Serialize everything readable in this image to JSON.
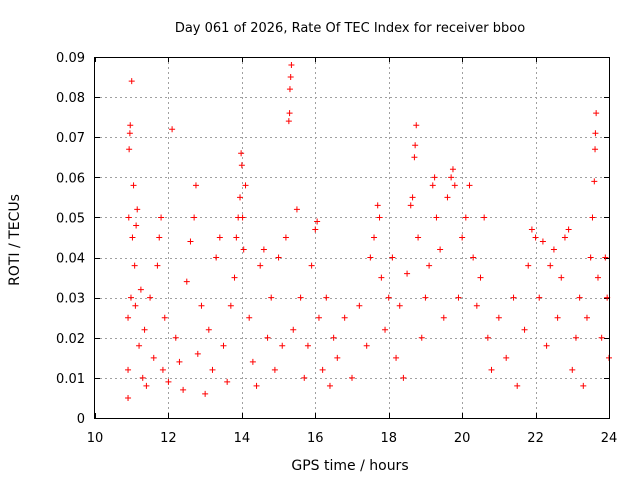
{
  "chart_data": {
    "type": "scatter",
    "title": "Day 061 of 2026, Rate Of TEC Index for receiver bboo",
    "xlabel": "GPS time / hours",
    "ylabel": "ROTI / TECUs",
    "xlim": [
      10,
      24
    ],
    "ylim": [
      0,
      0.09
    ],
    "x_ticks": [
      10,
      12,
      14,
      16,
      18,
      20,
      22,
      24
    ],
    "x_tick_labels": [
      "10",
      "12",
      "14",
      "16",
      "18",
      "20",
      "22",
      "24"
    ],
    "y_ticks": [
      0,
      0.01,
      0.02,
      0.03,
      0.04,
      0.05,
      0.06,
      0.07,
      0.08,
      0.09
    ],
    "y_tick_labels": [
      "0",
      "0.01",
      "0.02",
      "0.03",
      "0.04",
      "0.05",
      "0.06",
      "0.07",
      "0.08",
      "0.09"
    ],
    "grid": true,
    "marker": "+",
    "marker_color": "#ff0000",
    "series": [
      {
        "name": "ROTI",
        "points": [
          [
            10.9,
            0.005
          ],
          [
            10.9,
            0.012
          ],
          [
            10.9,
            0.025
          ],
          [
            10.92,
            0.05
          ],
          [
            10.93,
            0.067
          ],
          [
            10.95,
            0.071
          ],
          [
            10.96,
            0.073
          ],
          [
            10.98,
            0.03
          ],
          [
            11.0,
            0.084
          ],
          [
            11.02,
            0.045
          ],
          [
            11.05,
            0.058
          ],
          [
            11.08,
            0.038
          ],
          [
            11.1,
            0.028
          ],
          [
            11.12,
            0.048
          ],
          [
            11.15,
            0.052
          ],
          [
            11.2,
            0.018
          ],
          [
            11.25,
            0.032
          ],
          [
            11.3,
            0.01
          ],
          [
            11.35,
            0.022
          ],
          [
            11.4,
            0.008
          ],
          [
            11.5,
            0.03
          ],
          [
            11.6,
            0.015
          ],
          [
            11.7,
            0.038
          ],
          [
            11.75,
            0.045
          ],
          [
            11.8,
            0.05
          ],
          [
            11.85,
            0.012
          ],
          [
            11.9,
            0.025
          ],
          [
            12.0,
            0.009
          ],
          [
            12.1,
            0.072
          ],
          [
            12.2,
            0.02
          ],
          [
            12.3,
            0.014
          ],
          [
            12.4,
            0.007
          ],
          [
            12.5,
            0.034
          ],
          [
            12.6,
            0.044
          ],
          [
            12.7,
            0.05
          ],
          [
            12.75,
            0.058
          ],
          [
            12.8,
            0.016
          ],
          [
            12.9,
            0.028
          ],
          [
            13.0,
            0.006
          ],
          [
            13.1,
            0.022
          ],
          [
            13.2,
            0.012
          ],
          [
            13.3,
            0.04
          ],
          [
            13.4,
            0.045
          ],
          [
            13.5,
            0.018
          ],
          [
            13.6,
            0.009
          ],
          [
            13.7,
            0.028
          ],
          [
            13.8,
            0.035
          ],
          [
            13.85,
            0.045
          ],
          [
            13.9,
            0.05
          ],
          [
            13.95,
            0.055
          ],
          [
            13.98,
            0.066
          ],
          [
            14.0,
            0.063
          ],
          [
            14.02,
            0.05
          ],
          [
            14.05,
            0.042
          ],
          [
            14.1,
            0.058
          ],
          [
            14.2,
            0.025
          ],
          [
            14.3,
            0.014
          ],
          [
            14.4,
            0.008
          ],
          [
            14.5,
            0.038
          ],
          [
            14.6,
            0.042
          ],
          [
            14.7,
            0.02
          ],
          [
            14.8,
            0.03
          ],
          [
            14.9,
            0.012
          ],
          [
            15.0,
            0.04
          ],
          [
            15.1,
            0.018
          ],
          [
            15.2,
            0.045
          ],
          [
            15.28,
            0.074
          ],
          [
            15.3,
            0.076
          ],
          [
            15.31,
            0.082
          ],
          [
            15.33,
            0.085
          ],
          [
            15.35,
            0.088
          ],
          [
            15.4,
            0.022
          ],
          [
            15.5,
            0.052
          ],
          [
            15.6,
            0.03
          ],
          [
            15.7,
            0.01
          ],
          [
            15.8,
            0.018
          ],
          [
            15.9,
            0.038
          ],
          [
            16.0,
            0.047
          ],
          [
            16.05,
            0.049
          ],
          [
            16.1,
            0.025
          ],
          [
            16.2,
            0.012
          ],
          [
            16.3,
            0.03
          ],
          [
            16.4,
            0.008
          ],
          [
            16.5,
            0.02
          ],
          [
            16.6,
            0.015
          ],
          [
            16.8,
            0.025
          ],
          [
            17.0,
            0.01
          ],
          [
            17.2,
            0.028
          ],
          [
            17.4,
            0.018
          ],
          [
            17.5,
            0.04
          ],
          [
            17.6,
            0.045
          ],
          [
            17.7,
            0.053
          ],
          [
            17.75,
            0.05
          ],
          [
            17.8,
            0.035
          ],
          [
            17.9,
            0.022
          ],
          [
            18.0,
            0.03
          ],
          [
            18.1,
            0.04
          ],
          [
            18.2,
            0.015
          ],
          [
            18.3,
            0.028
          ],
          [
            18.4,
            0.01
          ],
          [
            18.5,
            0.036
          ],
          [
            18.6,
            0.053
          ],
          [
            18.65,
            0.055
          ],
          [
            18.7,
            0.065
          ],
          [
            18.72,
            0.068
          ],
          [
            18.75,
            0.073
          ],
          [
            18.8,
            0.045
          ],
          [
            18.9,
            0.02
          ],
          [
            19.0,
            0.03
          ],
          [
            19.1,
            0.038
          ],
          [
            19.2,
            0.058
          ],
          [
            19.25,
            0.06
          ],
          [
            19.3,
            0.05
          ],
          [
            19.4,
            0.042
          ],
          [
            19.5,
            0.025
          ],
          [
            19.6,
            0.055
          ],
          [
            19.7,
            0.06
          ],
          [
            19.75,
            0.062
          ],
          [
            19.8,
            0.058
          ],
          [
            19.9,
            0.03
          ],
          [
            20.0,
            0.045
          ],
          [
            20.1,
            0.05
          ],
          [
            20.2,
            0.058
          ],
          [
            20.3,
            0.04
          ],
          [
            20.4,
            0.028
          ],
          [
            20.5,
            0.035
          ],
          [
            20.6,
            0.05
          ],
          [
            20.7,
            0.02
          ],
          [
            20.8,
            0.012
          ],
          [
            21.0,
            0.025
          ],
          [
            21.2,
            0.015
          ],
          [
            21.4,
            0.03
          ],
          [
            21.5,
            0.008
          ],
          [
            21.7,
            0.022
          ],
          [
            21.8,
            0.038
          ],
          [
            21.9,
            0.047
          ],
          [
            22.0,
            0.045
          ],
          [
            22.1,
            0.03
          ],
          [
            22.2,
            0.044
          ],
          [
            22.3,
            0.018
          ],
          [
            22.4,
            0.038
          ],
          [
            22.5,
            0.042
          ],
          [
            22.6,
            0.025
          ],
          [
            22.7,
            0.035
          ],
          [
            22.8,
            0.045
          ],
          [
            22.9,
            0.047
          ],
          [
            23.0,
            0.012
          ],
          [
            23.1,
            0.02
          ],
          [
            23.2,
            0.03
          ],
          [
            23.3,
            0.008
          ],
          [
            23.4,
            0.025
          ],
          [
            23.5,
            0.04
          ],
          [
            23.55,
            0.05
          ],
          [
            23.6,
            0.059
          ],
          [
            23.62,
            0.067
          ],
          [
            23.63,
            0.071
          ],
          [
            23.65,
            0.076
          ],
          [
            23.7,
            0.035
          ],
          [
            23.8,
            0.02
          ],
          [
            23.9,
            0.04
          ],
          [
            23.95,
            0.03
          ],
          [
            24.0,
            0.015
          ]
        ]
      }
    ]
  }
}
